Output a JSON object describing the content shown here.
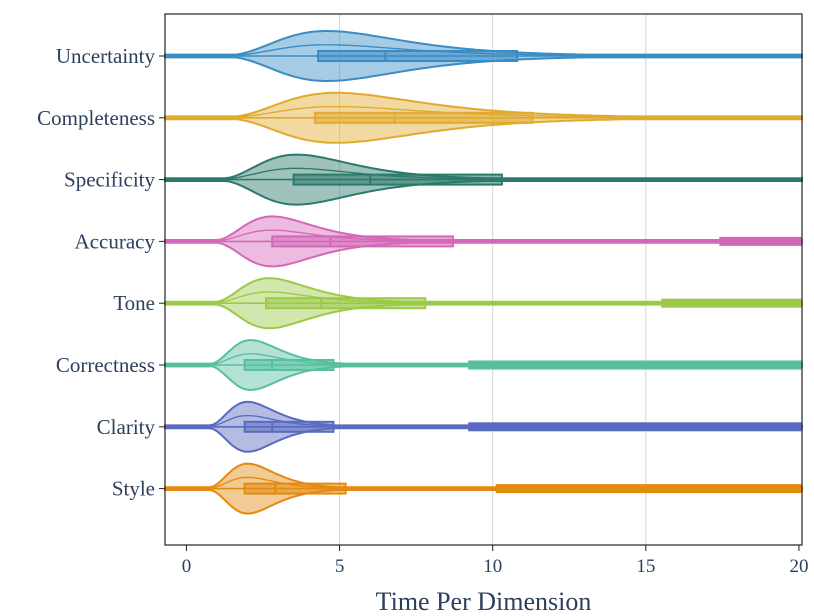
{
  "chart_data": {
    "type": "violin",
    "title": "",
    "xlabel": "Time Per Dimension",
    "ylabel": "",
    "xlim": [
      -0.7,
      20.1
    ],
    "xticks": [
      0,
      5,
      10,
      15,
      20
    ],
    "grid": "vertical",
    "orientation": "horizontal",
    "series": [
      {
        "name": "Uncertainty",
        "color": "#3a8cc4",
        "kde_mode": 4.6,
        "kde_width": 1.9,
        "q1": 4.3,
        "median": 6.5,
        "q3": 10.8,
        "inner_q": [
          5.0,
          9.3
        ],
        "outliers_start": null
      },
      {
        "name": "Completeness",
        "color": "#e0aa2e",
        "kde_mode": 4.9,
        "kde_width": 2.2,
        "q1": 4.2,
        "median": 6.8,
        "q3": 11.3,
        "inner_q": [
          5.0,
          9.3
        ],
        "outliers_start": null
      },
      {
        "name": "Specificity",
        "color": "#2b7a6a",
        "kde_mode": 3.6,
        "kde_width": 1.6,
        "q1": 3.5,
        "median": 6.0,
        "q3": 10.3,
        "inner_q": [
          4.5,
          8.6
        ],
        "outliers_start": null
      },
      {
        "name": "Accuracy",
        "color": "#d468b8",
        "kde_mode": 2.8,
        "kde_width": 1.4,
        "q1": 2.8,
        "median": 4.7,
        "q3": 8.7,
        "inner_q": [
          3.5,
          7.4
        ],
        "outliers_start": 17.4
      },
      {
        "name": "Tone",
        "color": "#9cc948",
        "kde_mode": 2.7,
        "kde_width": 1.4,
        "q1": 2.6,
        "median": 4.4,
        "q3": 7.8,
        "inner_q": [
          3.4,
          6.9
        ],
        "outliers_start": 15.5
      },
      {
        "name": "Correctness",
        "color": "#56bfa0",
        "kde_mode": 2.1,
        "kde_width": 0.9,
        "q1": 1.9,
        "median": 2.8,
        "q3": 4.8,
        "inner_q": [
          2.4,
          5.3
        ],
        "outliers_start": 9.2
      },
      {
        "name": "Clarity",
        "color": "#5a6abf",
        "kde_mode": 2.0,
        "kde_width": 0.9,
        "q1": 1.9,
        "median": 2.8,
        "q3": 4.8,
        "inner_q": [
          2.4,
          5.2
        ],
        "outliers_start": 9.2
      },
      {
        "name": "Style",
        "color": "#e38a10",
        "kde_mode": 2.0,
        "kde_width": 0.9,
        "q1": 1.9,
        "median": 2.9,
        "q3": 5.2,
        "inner_q": [
          2.4,
          5.6
        ],
        "outliers_start": 10.1
      }
    ]
  }
}
